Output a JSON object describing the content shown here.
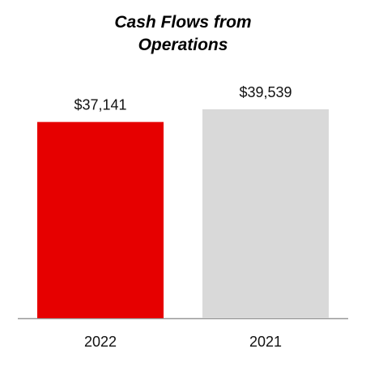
{
  "chart_data": {
    "type": "bar",
    "title": "Cash Flows from Operations",
    "categories": [
      "2022",
      "2021"
    ],
    "values": [
      37141,
      39539
    ],
    "value_labels": [
      "$37,141",
      "$39,539"
    ],
    "colors": [
      "#e60000",
      "#d9d9d9"
    ]
  }
}
